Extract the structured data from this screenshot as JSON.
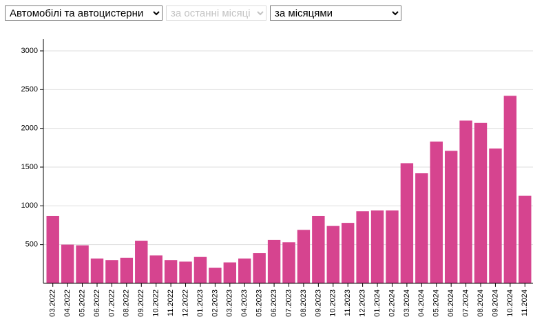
{
  "controls": {
    "vehicle_type": "Автомобілі та автоцистерни",
    "period": "за останні місяці",
    "grouping": "за місяцями"
  },
  "chart_data": {
    "type": "bar",
    "categories": [
      "03.2022",
      "04.2022",
      "05.2022",
      "06.2022",
      "07.2022",
      "08.2022",
      "09.2022",
      "10.2022",
      "11.2022",
      "12.2022",
      "01.2023",
      "02.2023",
      "03.2023",
      "04.2023",
      "05.2023",
      "06.2023",
      "07.2023",
      "08.2023",
      "09.2023",
      "10.2023",
      "11.2023",
      "12.2023",
      "01.2024",
      "02.2024",
      "03.2024",
      "04.2024",
      "05.2024",
      "06.2024",
      "07.2024",
      "08.2024",
      "09.2024",
      "10.2024",
      "11.2024"
    ],
    "values": [
      870,
      500,
      490,
      320,
      300,
      330,
      550,
      360,
      300,
      280,
      340,
      200,
      270,
      320,
      390,
      560,
      530,
      690,
      870,
      740,
      780,
      930,
      940,
      940,
      1550,
      1420,
      1830,
      1710,
      2100,
      2070,
      1740,
      2420,
      1130
    ],
    "color": "#d6448f",
    "ylim": [
      0,
      3000
    ],
    "yticks": [
      500,
      1000,
      1500,
      2000,
      2500,
      3000
    ],
    "grid": true
  }
}
